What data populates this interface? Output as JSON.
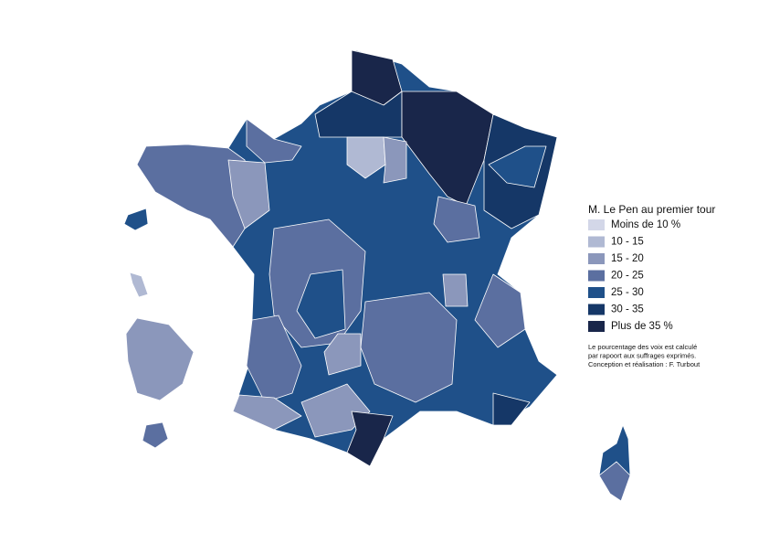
{
  "legend": {
    "title": "M. Le Pen au premier tour",
    "items": [
      {
        "label": "Moins de 10 %",
        "color": "#d3d7e8"
      },
      {
        "label": "10 - 15",
        "color": "#b0b9d3"
      },
      {
        "label": "15 - 20",
        "color": "#8b97bb"
      },
      {
        "label": "20 - 25",
        "color": "#5b6fa0"
      },
      {
        "label": "25 - 30",
        "color": "#1f5089"
      },
      {
        "label": "30 - 35",
        "color": "#153767"
      },
      {
        "label": "Plus de 35 %",
        "color": "#19264a"
      }
    ]
  },
  "note": [
    "Le pourcentage des voix est calculé",
    "par rapoort aux suffrages exprimés.",
    "Conception et réalisation : F. Turbout"
  ]
}
